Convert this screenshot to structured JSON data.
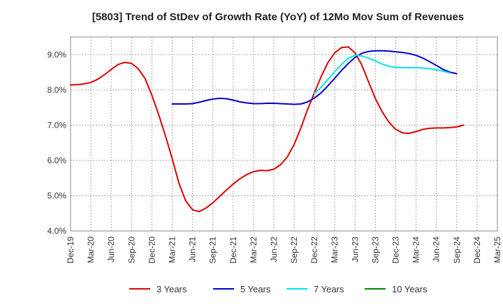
{
  "chart_data": {
    "type": "line",
    "title": "[5803]  Trend of StDev of Growth Rate (YoY) of 12Mo Mov Sum of Revenues",
    "xlabel": "",
    "ylabel": "",
    "ylim": [
      4.0,
      9.5
    ],
    "yticks": [
      4.0,
      5.0,
      6.0,
      7.0,
      8.0,
      9.0
    ],
    "ytick_labels": [
      "4.0%",
      "5.0%",
      "6.0%",
      "7.0%",
      "8.0%",
      "9.0%"
    ],
    "x_tick_labels": [
      "Dec-19",
      "Mar-20",
      "Jun-20",
      "Sep-20",
      "Dec-20",
      "Mar-21",
      "Jun-21",
      "Sep-21",
      "Dec-21",
      "Mar-22",
      "Jun-22",
      "Sep-22",
      "Dec-22",
      "Mar-23",
      "Jun-23",
      "Sep-23",
      "Dec-23",
      "Mar-24",
      "Jun-24",
      "Sep-24",
      "Dec-24",
      "Mar-25"
    ],
    "x_count": 64,
    "grid": true,
    "legend_position": "bottom",
    "series": [
      {
        "name": "3 Years",
        "color": "#dd0000",
        "start_index": 0,
        "values": [
          8.14,
          8.15,
          8.17,
          8.21,
          8.3,
          8.43,
          8.58,
          8.72,
          8.78,
          8.75,
          8.6,
          8.32,
          7.85,
          7.3,
          6.7,
          6.05,
          5.35,
          4.85,
          4.6,
          4.55,
          4.65,
          4.8,
          4.98,
          5.16,
          5.33,
          5.48,
          5.6,
          5.68,
          5.72,
          5.71,
          5.75,
          5.88,
          6.1,
          6.45,
          6.92,
          7.45,
          7.92,
          8.38,
          8.78,
          9.05,
          9.2,
          9.22,
          9.05,
          8.7,
          8.22,
          7.75,
          7.38,
          7.08,
          6.88,
          6.78,
          6.77,
          6.82,
          6.88,
          6.91,
          6.92,
          6.92,
          6.93,
          6.95,
          7.0
        ]
      },
      {
        "name": "5 Years",
        "color": "#0000cc",
        "start_index": 15,
        "values": [
          7.6,
          7.6,
          7.6,
          7.61,
          7.65,
          7.7,
          7.74,
          7.76,
          7.75,
          7.71,
          7.66,
          7.63,
          7.61,
          7.61,
          7.62,
          7.62,
          7.61,
          7.6,
          7.59,
          7.6,
          7.66,
          7.77,
          7.92,
          8.12,
          8.33,
          8.55,
          8.75,
          8.92,
          9.04,
          9.09,
          9.11,
          9.11,
          9.1,
          9.08,
          9.06,
          9.03,
          8.98,
          8.9,
          8.8,
          8.69,
          8.58,
          8.5,
          8.46
        ]
      },
      {
        "name": "7 Years",
        "color": "#00e5ee",
        "start_index": 36,
        "values": [
          7.9,
          8.08,
          8.3,
          8.52,
          8.72,
          8.9,
          8.98,
          8.96,
          8.9,
          8.82,
          8.73,
          8.67,
          8.64,
          8.63,
          8.63,
          8.63,
          8.62,
          8.6,
          8.57,
          8.53,
          8.48
        ]
      },
      {
        "name": "10 Years",
        "color": "#008800",
        "start_index": 0,
        "values": []
      }
    ]
  }
}
